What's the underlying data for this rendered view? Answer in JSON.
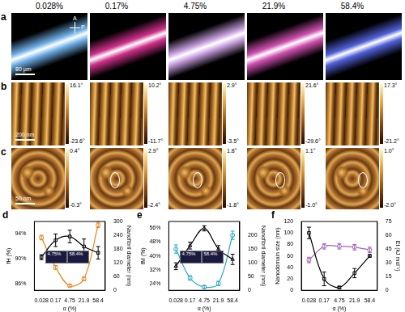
{
  "figure": {
    "panel_labels": [
      "a",
      "b",
      "c",
      "d",
      "e",
      "f"
    ],
    "columns": [
      "0.028%",
      "0.17%",
      "4.75%",
      "21.9%",
      "58.4%"
    ],
    "row_a": {
      "polarizer": [
        "A",
        "P"
      ],
      "scale_bar": "80 μm"
    },
    "row_b": {
      "scale_bar": "200 nm",
      "color_bars": [
        {
          "max": "16.1°",
          "min": "-23.6°"
        },
        {
          "max": "10.2°",
          "min": "-11.7°"
        },
        {
          "max": "2.9°",
          "min": "-3.5°"
        },
        {
          "max": "21.6°",
          "min": "-29.6°"
        },
        {
          "max": "17.3°",
          "min": "-21.2°"
        }
      ]
    },
    "row_c": {
      "scale_bar": "50 nm",
      "color_bars": [
        {
          "max": "0.4°",
          "min": "-0.3°"
        },
        {
          "max": "2.9°",
          "min": "-2.4°"
        },
        {
          "max": "1.8°",
          "min": "-1.8°"
        },
        {
          "max": "1.1°",
          "min": "-1.0°"
        },
        {
          "max": "1.0°",
          "min": "-2.0°"
        }
      ]
    }
  },
  "chart_data": [
    {
      "type": "line",
      "x_label": "α (%)",
      "y_label": "fH (%)",
      "y2_label": "Nanofibril diameter (nm)",
      "categories": [
        "0.028",
        "0.17",
        "4.75",
        "21.9",
        "58.4"
      ],
      "ylim": [
        85,
        96
      ],
      "yticks": [
        {
          "value": 86,
          "label": "86%"
        },
        {
          "value": 90,
          "label": "90%"
        },
        {
          "value": 94,
          "label": "94%"
        }
      ],
      "y2lim": [
        0,
        300
      ],
      "y2ticks": [
        0,
        60,
        120,
        180,
        240,
        300
      ],
      "grid": false,
      "annotations": [
        "4.75%",
        "58.4%"
      ],
      "series": [
        {
          "color": "#000000",
          "marker": "square",
          "values": [
            90.3,
            93.0,
            93.6,
            92.0,
            91.0
          ],
          "errors": [
            0.4,
            1.0,
            1.0,
            1.2,
            1.0
          ]
        },
        {
          "color": "#e8821e",
          "marker": "circle",
          "axis": "y2",
          "values": [
            230,
            100,
            20,
            50,
            285
          ],
          "errors": [
            10,
            8,
            5,
            8,
            12
          ]
        }
      ]
    },
    {
      "type": "line",
      "x_label": "α (%)",
      "y_label": "fM (%)",
      "y2_label": "Nanofibril diameter (nm)",
      "categories": [
        "0.028",
        "0.17",
        "4.75",
        "21.9",
        "58.4"
      ],
      "ylim": [
        20,
        60
      ],
      "yticks": [
        {
          "value": 24,
          "label": "24%"
        },
        {
          "value": 32,
          "label": "32%"
        },
        {
          "value": 40,
          "label": "40%"
        },
        {
          "value": 48,
          "label": "48%"
        },
        {
          "value": 56,
          "label": "56%"
        }
      ],
      "y2lim": [
        0,
        250
      ],
      "y2ticks": [
        0,
        50,
        100,
        150,
        200
      ],
      "grid": false,
      "annotations": [
        "4.75%",
        "58.4%"
      ],
      "series": [
        {
          "color": "#000000",
          "marker": "triangle",
          "values": [
            34,
            46,
            56,
            44,
            38
          ],
          "errors": [
            2,
            2,
            1.5,
            2,
            3
          ]
        },
        {
          "color": "#29a8c8",
          "marker": "circle",
          "axis": "y2",
          "values": [
            150,
            45,
            12,
            25,
            200
          ],
          "errors": [
            15,
            8,
            5,
            8,
            15
          ]
        }
      ]
    },
    {
      "type": "line",
      "x_label": "α (%)",
      "y_label": "Nanodomain size (nm)",
      "y2_label": "Et (kJ mol⁻¹)",
      "categories": [
        "0.028",
        "0.17",
        "4.75",
        "21.9",
        "58.4"
      ],
      "ylim": [
        0,
        120
      ],
      "yticks": [
        0,
        20,
        40,
        60,
        80,
        100,
        120
      ],
      "y2lim": [
        0,
        75
      ],
      "y2ticks": [
        0,
        15,
        30,
        45,
        60,
        75
      ],
      "grid": false,
      "series": [
        {
          "color": "#000000",
          "marker": "square",
          "values": [
            100,
            20,
            5,
            30,
            60
          ],
          "errors": [
            10,
            12,
            2,
            8,
            2
          ]
        },
        {
          "color": "#a064b4",
          "marker": "circle",
          "axis": "y2",
          "values": [
            33,
            48,
            48,
            47,
            44
          ],
          "errors": [
            3,
            3,
            3,
            3,
            3
          ]
        }
      ]
    }
  ]
}
